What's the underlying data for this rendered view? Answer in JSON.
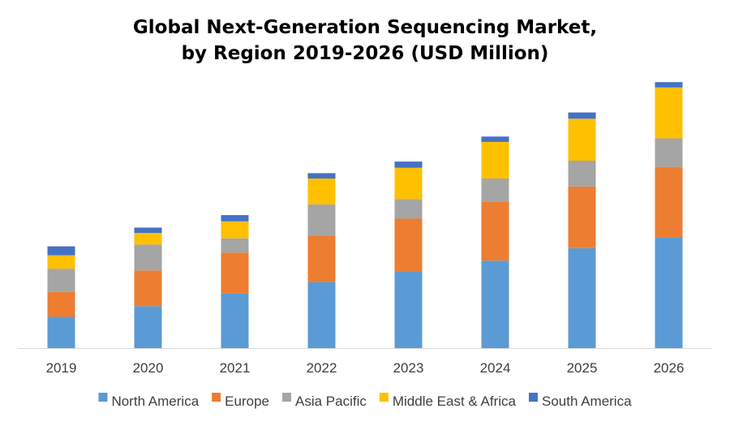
{
  "chart_data": {
    "type": "bar",
    "stacked": true,
    "title_line1": "Global Next-Generation Sequencing Market,",
    "title_line2": "by Region 2019-2026 (USD Million)",
    "xlabel": "",
    "ylabel": "",
    "categories": [
      "2019",
      "2020",
      "2021",
      "2022",
      "2023",
      "2024",
      "2025",
      "2026"
    ],
    "ylim": [
      0,
      300
    ],
    "grid": false,
    "legend_position": "bottom",
    "series": [
      {
        "name": "North America",
        "color": "#5B9BD5",
        "values": [
          35,
          47,
          61,
          74,
          86,
          98,
          112,
          124
        ]
      },
      {
        "name": "Europe",
        "color": "#ED7D31",
        "values": [
          28,
          40,
          46,
          52,
          59,
          66,
          69,
          79
        ]
      },
      {
        "name": "Asia Pacific",
        "color": "#A5A5A5",
        "values": [
          26,
          29,
          16,
          35,
          22,
          26,
          29,
          32
        ]
      },
      {
        "name": "Middle East & Africa",
        "color": "#FFC000",
        "values": [
          15,
          13,
          19,
          29,
          35,
          41,
          47,
          57
        ]
      },
      {
        "name": "South America",
        "color": "#4472C4",
        "values": [
          10,
          6,
          7,
          6,
          7,
          6,
          7,
          6
        ]
      }
    ]
  }
}
